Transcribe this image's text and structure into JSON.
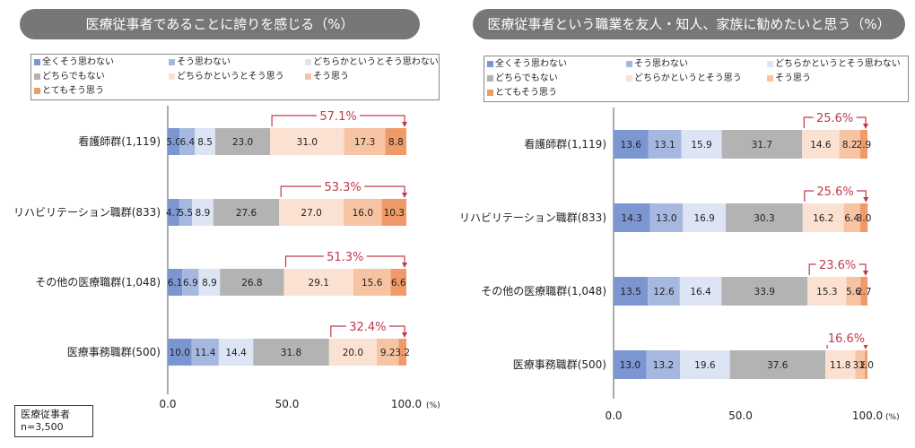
{
  "legend_labels": [
    "全くそう思わない",
    "そう思わない",
    "どちらかというとそう思わない",
    "どちらでもない",
    "どちらかというとそう思う",
    "そう思う",
    "とてもそう思う"
  ],
  "colors": [
    "#7b96d0",
    "#a7b8e0",
    "#dde4f3",
    "#b3b3b3",
    "#fbe1d2",
    "#f6c3a3",
    "#f09a6a"
  ],
  "note": {
    "line1": "医療従事者",
    "line2": "n=3,500"
  },
  "chart_data": [
    {
      "type": "bar",
      "orientation": "horizontal-stacked",
      "title": "医療従事者であることに誇りを感じる（%）",
      "categories": [
        "看護師群(1,119)",
        "リハビリテーション職群(833)",
        "その他の医療職群(1,048)",
        "医療事務職群(500)"
      ],
      "series": [
        {
          "name": "全くそう思わない",
          "values": [
            5.0,
            4.7,
            6.1,
            10.0
          ]
        },
        {
          "name": "そう思わない",
          "values": [
            6.4,
            5.5,
            6.9,
            11.4
          ]
        },
        {
          "name": "どちらかというとそう思わない",
          "values": [
            8.5,
            8.9,
            8.9,
            14.4
          ]
        },
        {
          "name": "どちらでもない",
          "values": [
            23.0,
            27.6,
            26.8,
            31.8
          ]
        },
        {
          "name": "どちらかというとそう思う",
          "values": [
            31.0,
            27.0,
            29.1,
            20.0
          ]
        },
        {
          "name": "そう思う",
          "values": [
            17.3,
            16.0,
            15.6,
            9.2
          ]
        },
        {
          "name": "とてもそう思う",
          "values": [
            8.8,
            10.3,
            6.6,
            3.2
          ]
        }
      ],
      "annotations": [
        "57.1%",
        "53.3%",
        "51.3%",
        "32.4%"
      ],
      "x_ticks": [
        "0.0",
        "50.0",
        "100.0"
      ],
      "x_unit": "(%)",
      "xlim": [
        0,
        100
      ]
    },
    {
      "type": "bar",
      "orientation": "horizontal-stacked",
      "title": "医療従事者という職業を友人・知人、家族に勧めたいと思う（%）",
      "categories": [
        "看護師群(1,119)",
        "リハビリテーション職群(833)",
        "その他の医療職群(1,048)",
        "医療事務職群(500)"
      ],
      "series": [
        {
          "name": "全くそう思わない",
          "values": [
            13.6,
            14.3,
            13.5,
            13.0
          ]
        },
        {
          "name": "そう思わない",
          "values": [
            13.1,
            13.0,
            12.6,
            13.2
          ]
        },
        {
          "name": "どちらかというとそう思わない",
          "values": [
            15.9,
            16.9,
            16.4,
            19.6
          ]
        },
        {
          "name": "どちらでもない",
          "values": [
            31.7,
            30.3,
            33.9,
            37.6
          ]
        },
        {
          "name": "どちらかというとそう思う",
          "values": [
            14.6,
            16.2,
            15.3,
            11.8
          ]
        },
        {
          "name": "そう思う",
          "values": [
            8.2,
            6.4,
            5.6,
            3.8
          ]
        },
        {
          "name": "とてもそう思う",
          "values": [
            2.9,
            3.0,
            2.7,
            1.0
          ]
        }
      ],
      "annotations": [
        "25.6%",
        "25.6%",
        "23.6%",
        "16.6%"
      ],
      "x_ticks": [
        "0.0",
        "50.0",
        "100.0"
      ],
      "x_unit": "(%)",
      "xlim": [
        0,
        100
      ]
    }
  ]
}
